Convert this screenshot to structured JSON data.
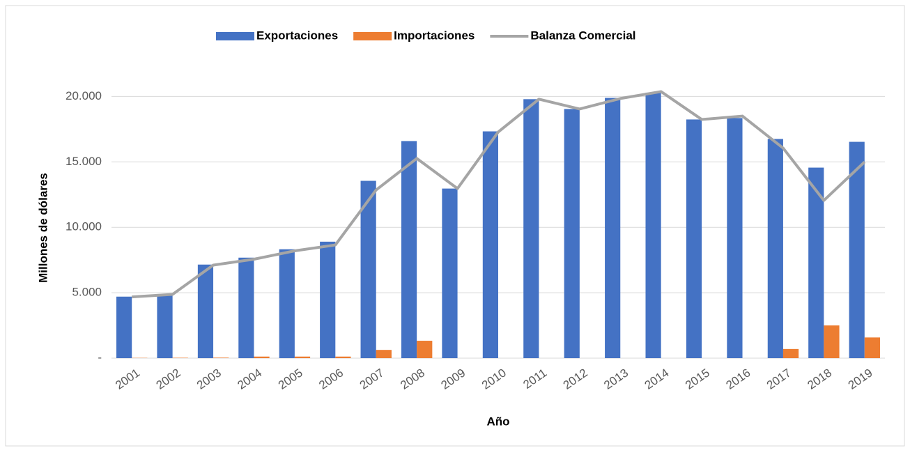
{
  "chart_data": {
    "type": "bar-line",
    "x_label": "Año",
    "y_label": "Millones de dólares",
    "categories": [
      "2001",
      "2002",
      "2003",
      "2004",
      "2005",
      "2006",
      "2007",
      "2008",
      "2009",
      "2010",
      "2011",
      "2012",
      "2013",
      "2014",
      "2015",
      "2016",
      "2017",
      "2018",
      "2019"
    ],
    "series": [
      {
        "name": "Exportaciones",
        "type": "bar",
        "color": "#4472c4",
        "values": [
          4700,
          4900,
          7150,
          7680,
          8320,
          8900,
          13550,
          16590,
          12960,
          17330,
          19790,
          19040,
          19890,
          20290,
          18240,
          18350,
          16750,
          14560,
          16530
        ]
      },
      {
        "name": "Importaciones",
        "type": "bar",
        "color": "#ed7d31",
        "values": [
          20,
          30,
          40,
          120,
          120,
          120,
          630,
          1330,
          0,
          0,
          0,
          0,
          0,
          0,
          0,
          0,
          700,
          2500,
          1580
        ]
      },
      {
        "name": "Balanza Comercial",
        "type": "line",
        "color": "#a5a5a5",
        "values": [
          4680,
          4870,
          7110,
          7560,
          8200,
          8650,
          12850,
          15260,
          12960,
          17280,
          19790,
          19040,
          19840,
          20370,
          18240,
          18500,
          16050,
          12050,
          14990
        ]
      }
    ],
    "ylim": [
      0,
      20500
    ],
    "yticks": [
      {
        "value": 0,
        "label": "-"
      },
      {
        "value": 5000,
        "label": "5.000"
      },
      {
        "value": 10000,
        "label": "10.000"
      },
      {
        "value": 15000,
        "label": "15.000"
      },
      {
        "value": 20000,
        "label": "20.000"
      }
    ],
    "grid": true,
    "legend": "top"
  }
}
